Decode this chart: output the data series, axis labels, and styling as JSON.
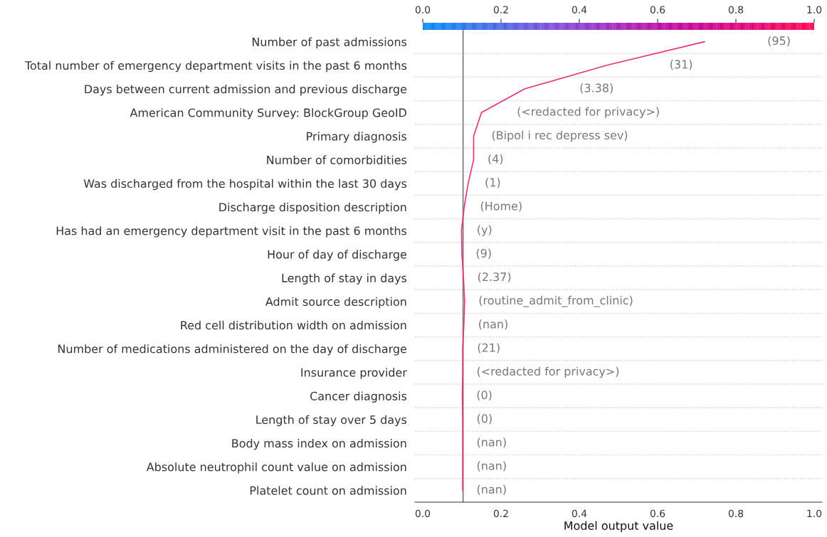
{
  "chart_data": {
    "type": "line",
    "orientation": "horizontal",
    "xlabel": "Model output value",
    "xlim": [
      -0.02,
      1.02
    ],
    "xticks": [
      {
        "value": 0,
        "label": "0.0"
      },
      {
        "value": 0.2,
        "label": "0.2"
      },
      {
        "value": 0.4,
        "label": "0.4"
      },
      {
        "value": 0.6,
        "label": "0.6"
      },
      {
        "value": 0.8,
        "label": "0.8"
      },
      {
        "value": 1,
        "label": "1.0"
      }
    ],
    "clim": [
      0,
      1
    ],
    "cticks": [
      {
        "value": 0,
        "label": "0.0"
      },
      {
        "value": 0.2,
        "label": "0.2"
      },
      {
        "value": 0.4,
        "label": "0.4"
      },
      {
        "value": 0.6,
        "label": "0.6"
      },
      {
        "value": 0.8,
        "label": "0.8"
      },
      {
        "value": 1,
        "label": "1.0"
      }
    ],
    "categories": [
      "Number of past admissions",
      "Total number of emergency department visits in the past 6 months",
      "Days between current admission and previous discharge",
      "American Community Survey: BlockGroup GeoID",
      "Primary diagnosis",
      "Number of comorbidities",
      "Was discharged from the hospital within the last 30 days",
      "Discharge disposition description",
      "Has had an emergency department visit in the past 6 months",
      "Hour of day of discharge",
      "Length of stay in days",
      "Admit source description",
      "Red cell distribution width on admission",
      "Number of medications administered on the day of discharge",
      "Insurance provider",
      "Cancer diagnosis",
      "Length of stay over 5 days",
      "Body mass index on admission",
      "Absolute neutrophil count value on admission",
      "Platelet count on admission"
    ],
    "series": [
      {
        "color": "#e8327f",
        "values": [
          0.72,
          0.47,
          0.26,
          0.15,
          0.13,
          0.13,
          0.116,
          0.106,
          0.099,
          0.1,
          0.104,
          0.107,
          0.105,
          0.102,
          0.102,
          0.101,
          0.102,
          0.102,
          0.102,
          0.102
        ]
      }
    ],
    "ref_lines": [
      {
        "axis": "x",
        "value": 0.103,
        "color": "#808080"
      }
    ],
    "grid": "y",
    "annotations": [
      "(95)",
      "(31)",
      "(3.38)",
      "(<redacted for privacy>)",
      "(Bipol i rec depress sev)",
      "(4)",
      "(1)",
      "(Home)",
      "(y)",
      "(9)",
      "(2.37)",
      "(routine_admit_from_clinic)",
      "(nan)",
      "(21)",
      "(<redacted for privacy>)",
      "(0)",
      "(0)",
      "(nan)",
      "(nan)",
      "(nan)"
    ]
  }
}
